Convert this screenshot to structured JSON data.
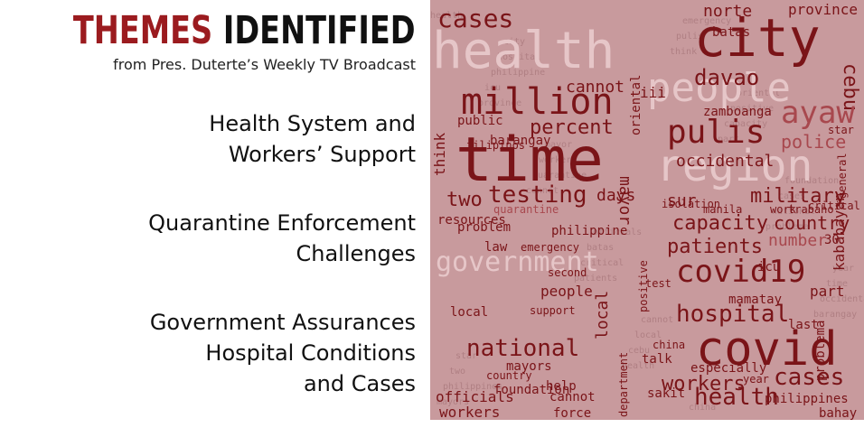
{
  "header": {
    "title_accent": "THEMES",
    "title_rest": "IDENTIFIED",
    "subtitle": "from Pres. Duterte’s Weekly TV Broadcast"
  },
  "themes": [
    {
      "lines": [
        "Health System and",
        "Workers’ Support"
      ]
    },
    {
      "lines": [
        "Quarantine Enforcement",
        "Challenges"
      ]
    },
    {
      "lines": [
        "Government Assurances",
        "Hospital Conditions",
        "and Cases"
      ]
    }
  ],
  "wordcloud": {
    "background_color": "#c89a9d",
    "colors": {
      "dark": "#7a1418",
      "mid": "#a8484e",
      "light": "#e6c6c8",
      "muted": "#9c6a6e"
    },
    "words": [
      {
        "text": "health",
        "tone": "light"
      },
      {
        "text": "city",
        "tone": "dark"
      },
      {
        "text": "people",
        "tone": "light"
      },
      {
        "text": "cases",
        "tone": "dark"
      },
      {
        "text": "davao",
        "tone": "dark"
      },
      {
        "text": "cebu",
        "tone": "dark"
      },
      {
        "text": "norte",
        "tone": "dark"
      },
      {
        "text": "province",
        "tone": "dark"
      },
      {
        "text": "million",
        "tone": "dark"
      },
      {
        "text": "ayaw",
        "tone": "mid"
      },
      {
        "text": "time",
        "tone": "dark"
      },
      {
        "text": "region",
        "tone": "light"
      },
      {
        "text": "pulis",
        "tone": "dark"
      },
      {
        "text": "percent",
        "tone": "dark"
      },
      {
        "text": "cannot",
        "tone": "dark"
      },
      {
        "text": "police",
        "tone": "mid"
      },
      {
        "text": "testing",
        "tone": "dark"
      },
      {
        "text": "two",
        "tone": "dark"
      },
      {
        "text": "military",
        "tone": "dark"
      },
      {
        "text": "capacity",
        "tone": "dark"
      },
      {
        "text": "country",
        "tone": "dark"
      },
      {
        "text": "patients",
        "tone": "dark"
      },
      {
        "text": "government",
        "tone": "light"
      },
      {
        "text": "covid19",
        "tone": "dark"
      },
      {
        "text": "hospital",
        "tone": "dark"
      },
      {
        "text": "covid",
        "tone": "dark"
      },
      {
        "text": "national",
        "tone": "dark"
      },
      {
        "text": "workers",
        "tone": "dark"
      },
      {
        "text": "health",
        "tone": "dark"
      },
      {
        "text": "cases",
        "tone": "dark"
      },
      {
        "text": "days",
        "tone": "dark"
      },
      {
        "text": "mayor",
        "tone": "dark"
      },
      {
        "text": "sur",
        "tone": "dark"
      },
      {
        "text": "occidental",
        "tone": "dark"
      },
      {
        "text": "zamboanga",
        "tone": "dark"
      },
      {
        "text": "think",
        "tone": "dark"
      },
      {
        "text": "public",
        "tone": "dark"
      },
      {
        "text": "local",
        "tone": "dark"
      },
      {
        "text": "officials",
        "tone": "dark"
      },
      {
        "text": "kababayan",
        "tone": "dark"
      },
      {
        "text": "philippines",
        "tone": "dark"
      },
      {
        "text": "bahay",
        "tone": "dark"
      },
      {
        "text": "part",
        "tone": "dark"
      },
      {
        "text": "last",
        "tone": "dark"
      },
      {
        "text": "help",
        "tone": "dark"
      },
      {
        "text": "cannot",
        "tone": "dark"
      },
      {
        "text": "people",
        "tone": "dark"
      },
      {
        "text": "philippine",
        "tone": "dark"
      },
      {
        "text": "number",
        "tone": "mid"
      },
      {
        "text": "problema",
        "tone": "dark"
      },
      {
        "text": "sakit",
        "tone": "dark"
      },
      {
        "text": "talk",
        "tone": "dark"
      },
      {
        "text": "china",
        "tone": "dark"
      },
      {
        "text": "force",
        "tone": "dark"
      },
      {
        "text": "workers",
        "tone": "dark"
      },
      {
        "text": "department",
        "tone": "dark"
      },
      {
        "text": "barangay",
        "tone": "dark"
      },
      {
        "text": "manila",
        "tone": "dark"
      },
      {
        "text": "trabaho",
        "tone": "dark"
      },
      {
        "text": "oriental",
        "tone": "dark"
      },
      {
        "text": "iii",
        "tone": "dark"
      },
      {
        "text": "batas",
        "tone": "dark"
      },
      {
        "text": "filipinos",
        "tone": "dark"
      },
      {
        "text": "mayors",
        "tone": "dark"
      },
      {
        "text": "second",
        "tone": "dark"
      },
      {
        "text": "problem",
        "tone": "dark"
      },
      {
        "text": "foundation",
        "tone": "dark"
      },
      {
        "text": "country",
        "tone": "dark"
      },
      {
        "text": "local",
        "tone": "dark"
      },
      {
        "text": "isolation",
        "tone": "dark"
      },
      {
        "text": "icu",
        "tone": "dark"
      },
      {
        "text": "mamatay",
        "tone": "dark"
      },
      {
        "text": "especially",
        "tone": "dark"
      },
      {
        "text": "year",
        "tone": "dark"
      },
      {
        "text": "law",
        "tone": "dark"
      },
      {
        "text": "emergency",
        "tone": "dark"
      },
      {
        "text": "resources",
        "tone": "dark"
      },
      {
        "text": "quarantine",
        "tone": "mid"
      },
      {
        "text": "test",
        "tone": "dark"
      },
      {
        "text": "30",
        "tone": "dark"
      },
      {
        "text": "star",
        "tone": "dark"
      },
      {
        "text": "general",
        "tone": "dark"
      },
      {
        "text": "positive",
        "tone": "dark"
      },
      {
        "text": "support",
        "tone": "dark"
      },
      {
        "text": "critical",
        "tone": "dark"
      },
      {
        "text": "work",
        "tone": "dark"
      }
    ]
  }
}
